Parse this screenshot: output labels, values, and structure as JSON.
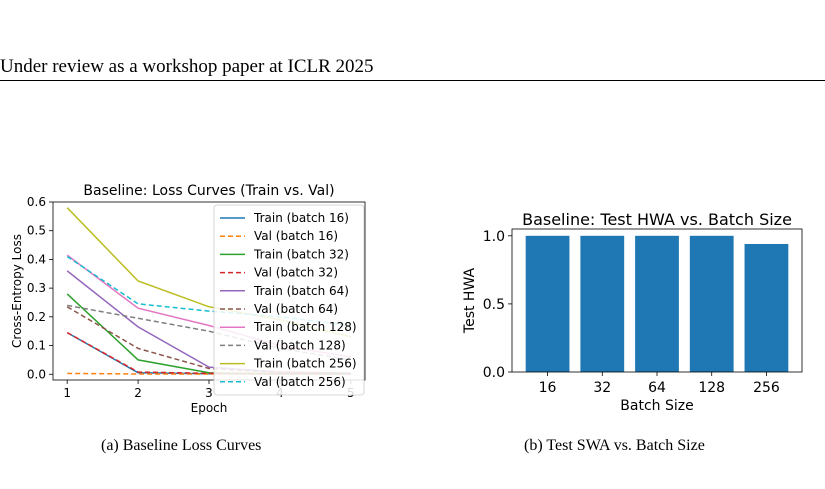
{
  "header": {
    "running_title": "Under review as a workshop paper at ICLR 2025"
  },
  "figures": {
    "a": {
      "caption": "(a)  Baseline Loss Curves"
    },
    "b": {
      "caption": "(b)  Test SWA vs. Batch Size"
    }
  },
  "chart_data": [
    {
      "type": "line",
      "title": "Baseline: Loss Curves (Train vs. Val)",
      "xlabel": "Epoch",
      "ylabel": "Cross-Entropy Loss",
      "xlim": [
        0.8,
        5.2
      ],
      "ylim": [
        -0.02,
        0.6
      ],
      "xticks": [
        1,
        2,
        3,
        4,
        5
      ],
      "yticks": [
        0.0,
        0.1,
        0.2,
        0.3,
        0.4,
        0.5,
        0.6
      ],
      "x": [
        1,
        2,
        3,
        4,
        5
      ],
      "legend": "upper-right",
      "grid": false,
      "series": [
        {
          "name": "Train (batch 16)",
          "color": "#1f77b4",
          "style": "solid",
          "values": [
            0.145,
            0.005,
            0.002,
            0.001,
            0.001
          ]
        },
        {
          "name": "Val (batch 16)",
          "color": "#ff7f0e",
          "style": "dashed",
          "values": [
            0.003,
            0.001,
            0.001,
            0.001,
            0.001
          ]
        },
        {
          "name": "Train (batch 32)",
          "color": "#2ca02c",
          "style": "solid",
          "values": [
            0.28,
            0.05,
            0.005,
            0.002,
            0.001
          ]
        },
        {
          "name": "Val (batch 32)",
          "color": "#d62728",
          "style": "dashed",
          "values": [
            0.145,
            0.008,
            0.003,
            0.002,
            0.001
          ]
        },
        {
          "name": "Train (batch 64)",
          "color": "#9467bd",
          "style": "solid",
          "values": [
            0.36,
            0.165,
            0.025,
            0.008,
            0.004
          ]
        },
        {
          "name": "Val (batch 64)",
          "color": "#8c564b",
          "style": "dashed",
          "values": [
            0.235,
            0.09,
            0.02,
            0.006,
            0.004
          ]
        },
        {
          "name": "Train (batch 128)",
          "color": "#e377c2",
          "style": "solid",
          "values": [
            0.415,
            0.23,
            0.17,
            0.1,
            0.06
          ]
        },
        {
          "name": "Val (batch 128)",
          "color": "#7f7f7f",
          "style": "dashed",
          "values": [
            0.24,
            0.195,
            0.15,
            0.09,
            0.05
          ]
        },
        {
          "name": "Train (batch 256)",
          "color": "#bcbd22",
          "style": "solid",
          "values": [
            0.58,
            0.325,
            0.235,
            0.19,
            0.13
          ]
        },
        {
          "name": "Val (batch 256)",
          "color": "#17becf",
          "style": "dashed",
          "values": [
            0.41,
            0.245,
            0.22,
            0.2,
            0.17
          ]
        }
      ]
    },
    {
      "type": "bar",
      "title": "Baseline: Test HWA vs. Batch Size",
      "xlabel": "Batch Size",
      "ylabel": "Test HWA",
      "categories": [
        "16",
        "32",
        "64",
        "128",
        "256"
      ],
      "values": [
        1.0,
        1.0,
        1.0,
        1.0,
        0.94
      ],
      "ylim": [
        0,
        1.05
      ],
      "yticks": [
        0.0,
        0.5,
        1.0
      ],
      "ytick_labels": [
        "0.0",
        "0.5",
        "1.0"
      ],
      "bar_color": "#1f77b4",
      "grid": false
    }
  ]
}
